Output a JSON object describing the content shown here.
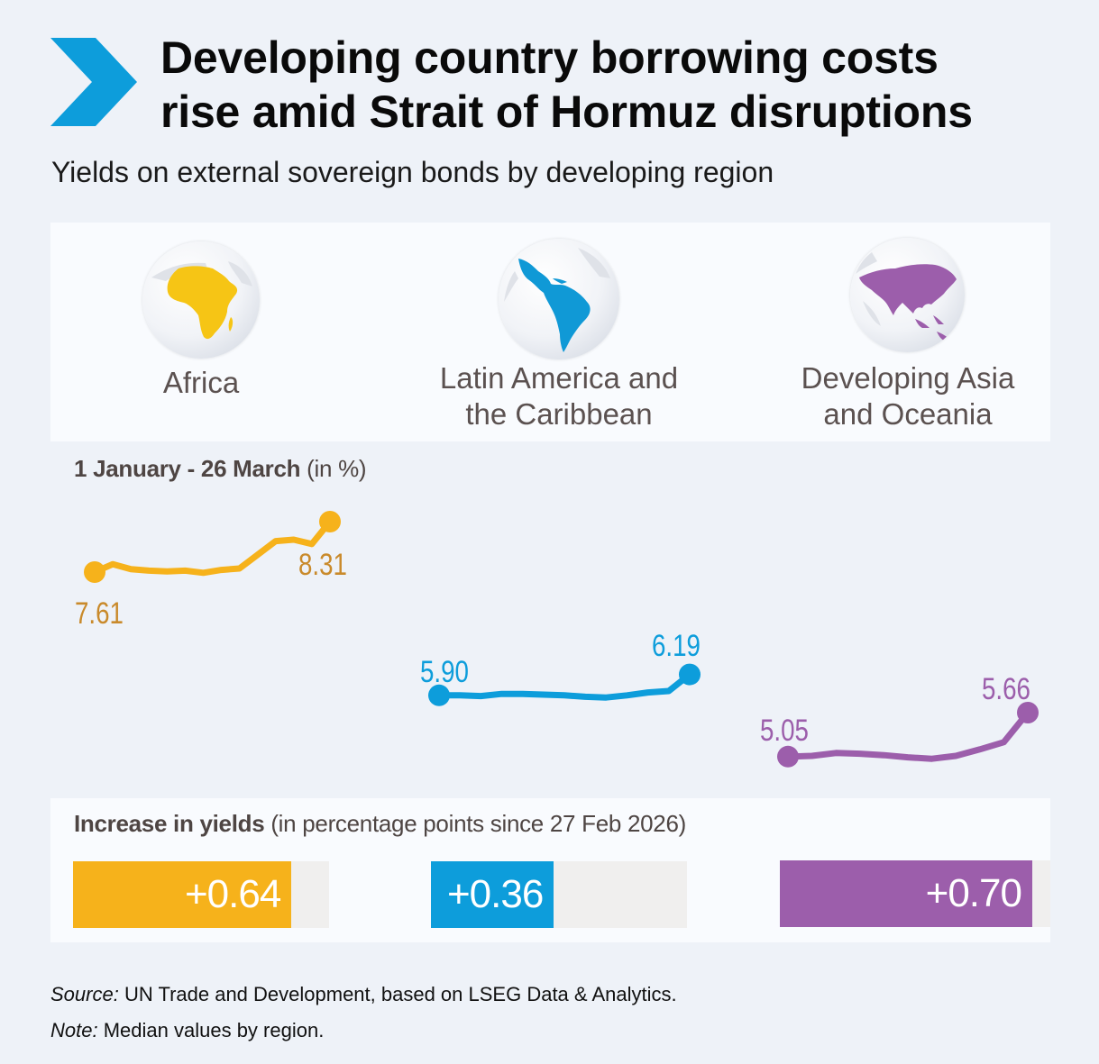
{
  "header": {
    "title_line1": "Developing country borrowing costs",
    "title_line2": "rise amid Strait of Hormuz disruptions",
    "subtitle": "Yields on external sovereign bonds by developing region"
  },
  "colors": {
    "africa": "#f6b21b",
    "africa_label": "#c98a2b",
    "latam": "#0d9ddb",
    "asia": "#9c5eab",
    "chevron": "#0d9ddb",
    "bar_track": "#f0efee"
  },
  "regions": [
    {
      "label_line1": "Africa",
      "label_line2": "",
      "icon": "africa-globe-icon"
    },
    {
      "label_line1": "Latin America and",
      "label_line2": "the Caribbean",
      "icon": "latin-america-globe-icon"
    },
    {
      "label_line1": "Developing Asia",
      "label_line2": "and Oceania",
      "icon": "asia-globe-icon"
    }
  ],
  "period": {
    "bold": "1 January - 26 March",
    "unit": "(in %)"
  },
  "increase": {
    "bold": "Increase in yields",
    "rest": "(in percentage points since 27 Feb 2026)"
  },
  "chart_data": [
    {
      "type": "line",
      "series": [
        {
          "region": "Africa",
          "values": [
            7.61,
            7.72,
            7.65,
            7.63,
            7.62,
            7.63,
            7.6,
            7.64,
            7.66,
            7.85,
            8.04,
            8.06,
            8.0,
            8.31
          ],
          "start_label": "7.61",
          "end_label": "8.31"
        },
        {
          "region": "Latin America and the Caribbean",
          "values": [
            5.9,
            5.9,
            5.89,
            5.92,
            5.92,
            5.91,
            5.9,
            5.88,
            5.87,
            5.9,
            5.94,
            5.96,
            6.19
          ],
          "start_label": "5.90",
          "end_label": "6.19"
        },
        {
          "region": "Developing Asia and Oceania",
          "values": [
            5.05,
            5.06,
            5.1,
            5.09,
            5.07,
            5.04,
            5.02,
            5.06,
            5.15,
            5.25,
            5.66
          ],
          "start_label": "5.05",
          "end_label": "5.66"
        }
      ]
    },
    {
      "type": "bar",
      "orientation": "horizontal",
      "scale_max": 0.75,
      "categories": [
        "Africa",
        "Latin America and the Caribbean",
        "Developing Asia and Oceania"
      ],
      "values": [
        0.64,
        0.36,
        0.7
      ],
      "labels": [
        "+0.64",
        "+0.36",
        "+0.70"
      ]
    }
  ],
  "footer": {
    "source_label": "Source:",
    "source_text": "UN Trade and Development, based on LSEG Data & Analytics.",
    "note_label": "Note:",
    "note_text": "Median values by region."
  }
}
